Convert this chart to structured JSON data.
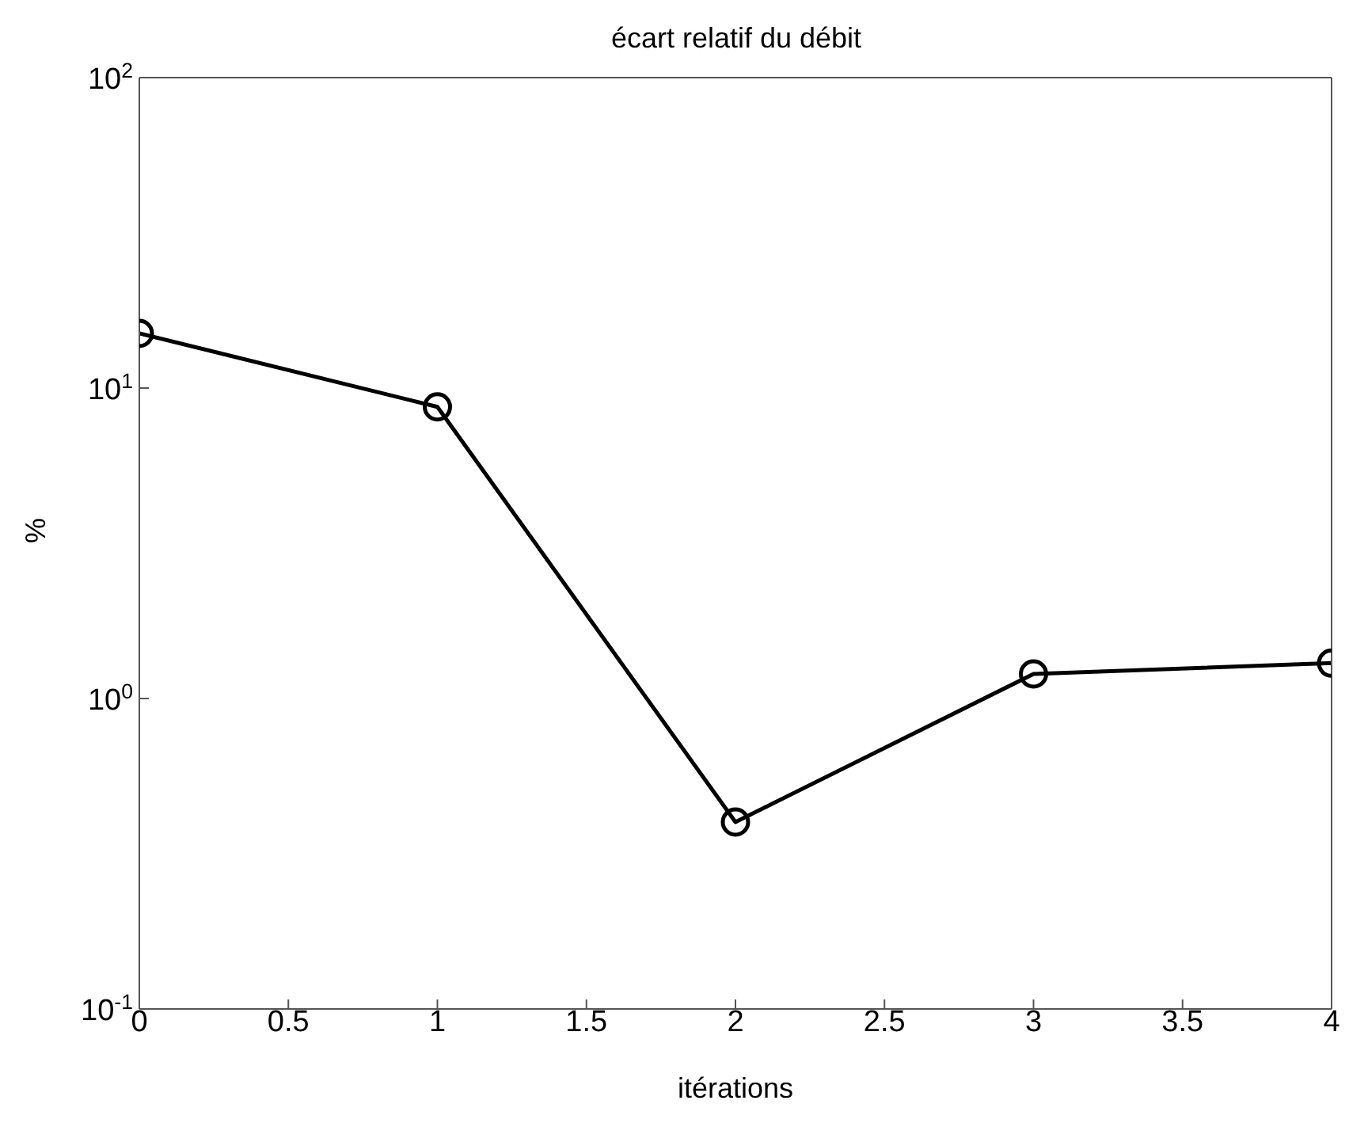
{
  "chart_data": {
    "type": "line",
    "title": "écart relatif du débit",
    "xlabel": "itérations",
    "ylabel": "%",
    "x": [
      0,
      1,
      2,
      3,
      4
    ],
    "series": [
      {
        "color": "#000000",
        "values": [
          15,
          8.7,
          0.4,
          1.2,
          1.3
        ]
      }
    ],
    "xlim": [
      0,
      4
    ],
    "xticks": [
      0,
      0.5,
      1,
      1.5,
      2,
      2.5,
      3,
      3.5,
      4
    ],
    "ylim": [
      0.1,
      100
    ],
    "yticks": [
      {
        "value": 0.1,
        "label": "10$^{-1}$"
      },
      {
        "value": 1,
        "label": "10$^{0}$"
      },
      {
        "value": 10,
        "label": "10$^{1}$"
      },
      {
        "value": 100,
        "label": "10$^{2}$"
      }
    ],
    "log": "y",
    "marker": "circle"
  }
}
